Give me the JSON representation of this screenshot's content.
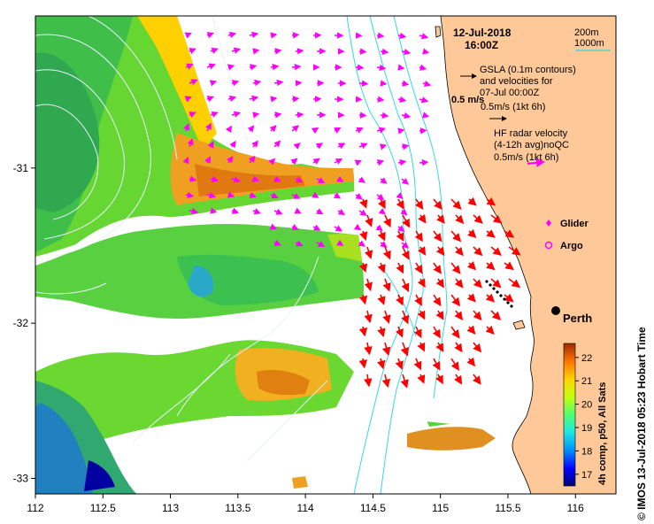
{
  "title": {
    "date": "12-Jul-2018",
    "time": "16:00Z"
  },
  "depth_legend": {
    "line1": "200m",
    "line2": "1000m",
    "line_color": "#33d6e0"
  },
  "gsla": {
    "line1": "GSLA (0.1m contours)",
    "line2": "and velocities for",
    "line3": "07-Jul 00:00Z",
    "scale_label": "0.5m/s (1kt 6h)",
    "arrow_label": "0.5 m/s"
  },
  "hf_radar": {
    "line1": "HF radar velocity",
    "line2": "(4-12h avg)noQC",
    "scale_label": "0.5m/s (1kt 6h)",
    "color": "#e020e0"
  },
  "markers": {
    "glider": "Glider",
    "argo": "Argo",
    "city": "Perth"
  },
  "colorbar": {
    "label": "4h comp, p50, All Sats",
    "ticks": [
      "17",
      "18",
      "19",
      "20",
      "21",
      "22"
    ],
    "min": 16.5,
    "max": 22.6,
    "colors": [
      "#000080",
      "#0000ff",
      "#0096ff",
      "#00e0ff",
      "#40ff90",
      "#b0ff20",
      "#ffe000",
      "#ff8000",
      "#b03000"
    ]
  },
  "x_axis": {
    "ticks": [
      "112",
      "112.5",
      "113",
      "113.5",
      "114",
      "114.5",
      "115",
      "115.5",
      "116"
    ],
    "values": [
      112,
      112.5,
      113,
      113.5,
      114,
      114.5,
      115,
      115.5,
      116
    ],
    "range": [
      112,
      116.3
    ]
  },
  "y_axis": {
    "ticks": [
      "-31",
      "-32",
      "-33"
    ],
    "values": [
      -31,
      -32,
      -33
    ],
    "range": [
      -33.1,
      -30.02
    ]
  },
  "credit": "© IMOS 13-Jul-2018 05:23 Hobart Time",
  "colors": {
    "land": "#ffc898",
    "radar_arrow": "#ff0000",
    "gsla_arrow": "#ff00ff",
    "contour": "#e8f0ff"
  }
}
